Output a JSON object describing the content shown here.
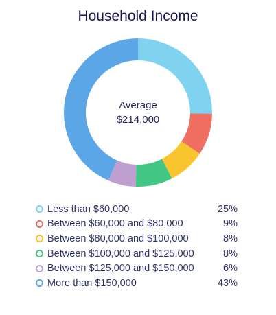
{
  "chart_data": {
    "type": "pie",
    "title": "Household Income",
    "center_label": "Average",
    "center_value": "$214,000",
    "slices": [
      {
        "label": "Less than $60,000",
        "value": 25,
        "display": "25%",
        "color": "#7fd3f0"
      },
      {
        "label": "Between $60,000 and $80,000",
        "value": 9,
        "display": "9%",
        "color": "#ef6f63"
      },
      {
        "label": "Between $80,000 and $100,000",
        "value": 8,
        "display": "8%",
        "color": "#f8c52f"
      },
      {
        "label": "Between $100,000 and $125,000",
        "value": 8,
        "display": "8%",
        "color": "#43c584"
      },
      {
        "label": "Between $125,000 and $150,000",
        "value": 6,
        "display": "6%",
        "color": "#bf9ed0"
      },
      {
        "label": "More than $150,000",
        "value": 43,
        "display": "43%",
        "color": "#5aa6e6"
      }
    ],
    "legend_position": "bottom"
  }
}
